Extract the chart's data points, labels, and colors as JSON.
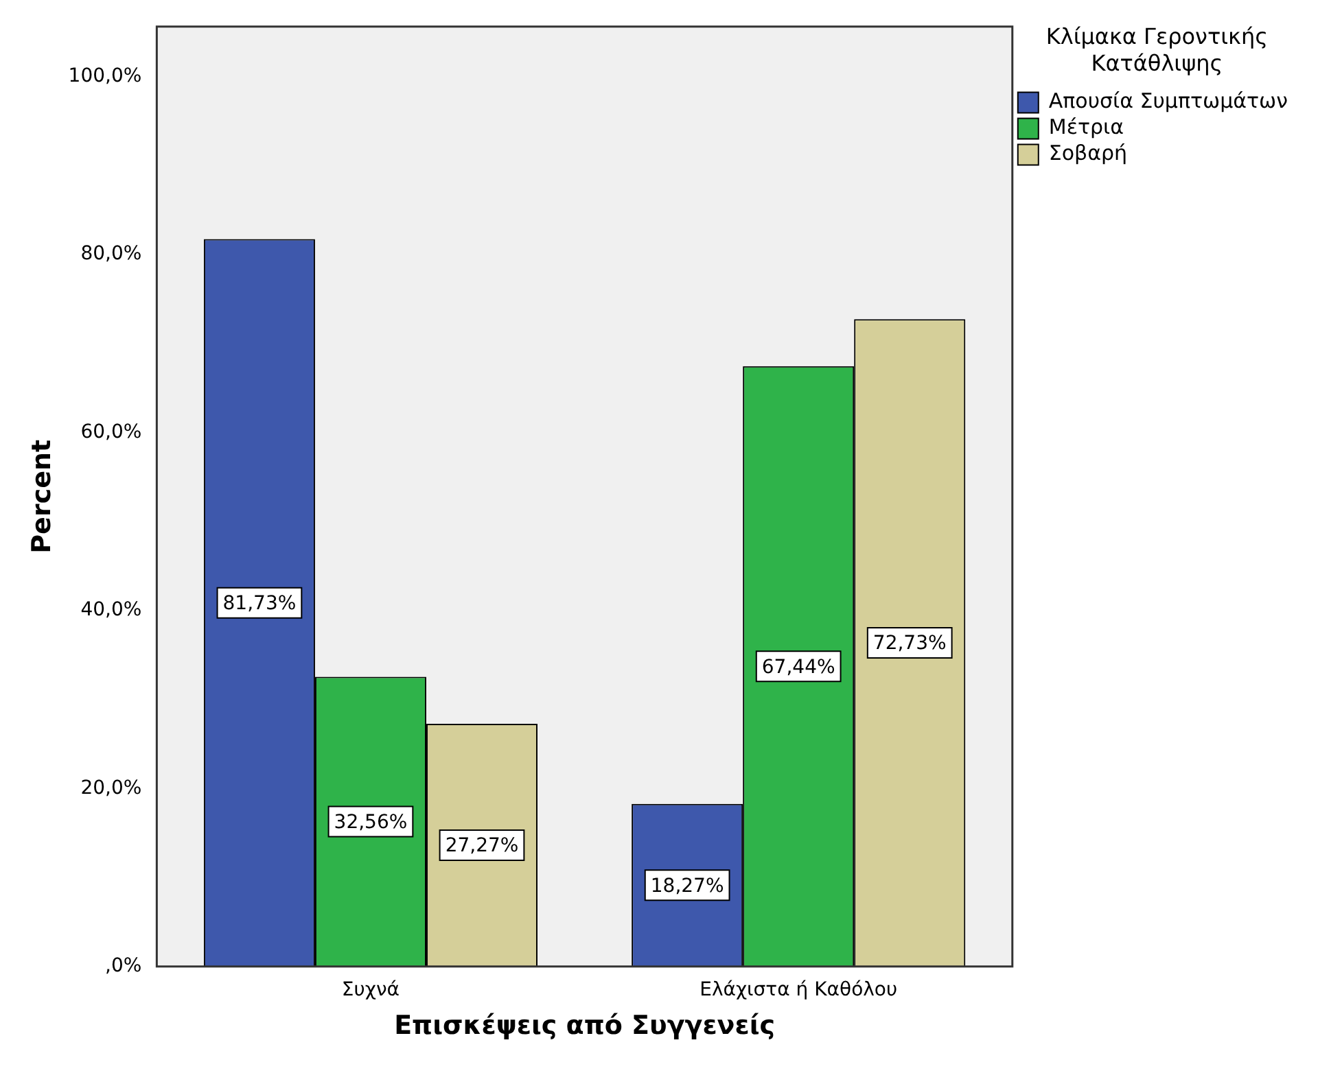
{
  "chart_data": {
    "type": "bar",
    "xlabel": "Επισκέψεις από Συγγενείς",
    "ylabel": "Percent",
    "legend_title": "Κλίμακα Γεροντικής Κατάθλιψης",
    "legend": "top right",
    "categories": [
      "Συχνά",
      "Ελάχιστα ή Καθόλου"
    ],
    "series": [
      {
        "name": "Απουσία Συμπτωμάτων",
        "color": "#3e58ac",
        "values": [
          81.73,
          18.27
        ],
        "value_labels": [
          "81,73%",
          "18,27%"
        ]
      },
      {
        "name": "Μέτρια",
        "color": "#2fb34a",
        "values": [
          32.56,
          67.44
        ],
        "value_labels": [
          "32,56%",
          "67,44%"
        ]
      },
      {
        "name": "Σοβαρή",
        "color": "#d5cf99",
        "values": [
          27.27,
          72.73
        ],
        "value_labels": [
          "27,27%",
          "72,73%"
        ]
      }
    ],
    "ylim": [
      0,
      105.6
    ],
    "yticks": [
      {
        "value": 0,
        "label": ",0%"
      },
      {
        "value": 20,
        "label": "20,0%"
      },
      {
        "value": 40,
        "label": "40,0%"
      },
      {
        "value": 60,
        "label": "60,0%"
      },
      {
        "value": 80,
        "label": "80,0%"
      },
      {
        "value": 100,
        "label": "100,0%"
      }
    ],
    "grid": false
  }
}
